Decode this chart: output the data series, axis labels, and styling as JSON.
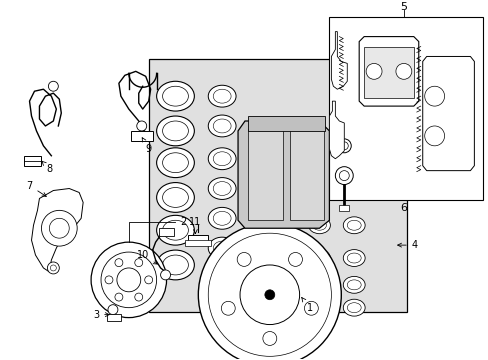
{
  "bg_color": "#ffffff",
  "fig_width": 4.89,
  "fig_height": 3.6,
  "dpi": 100,
  "line_color": "#000000",
  "shaded_box_color": "#e0e0e0",
  "caliper_color": "#c8c8c8"
}
